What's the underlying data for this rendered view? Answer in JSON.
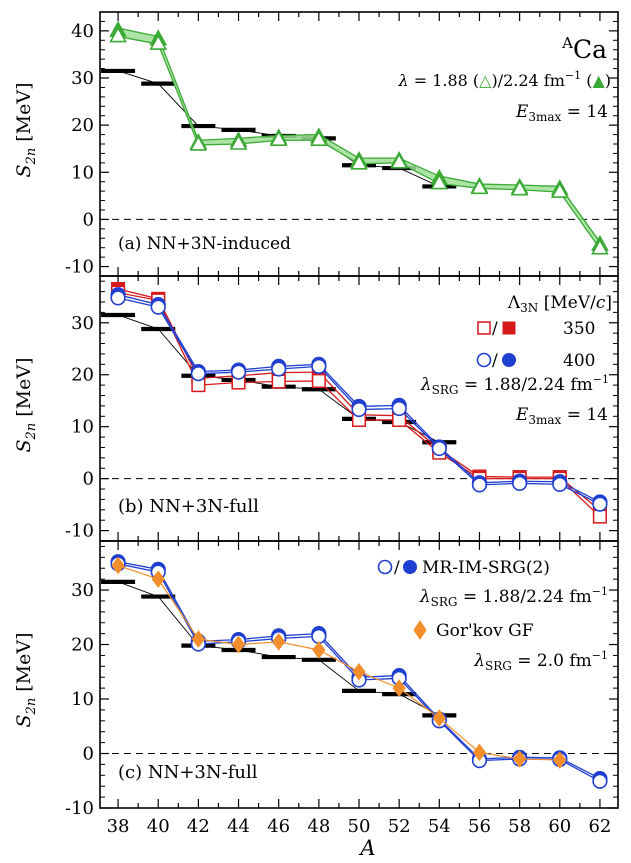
{
  "chart_data": {
    "type": "scatter",
    "x_axis": {
      "label": "A",
      "ticks": [
        38,
        40,
        42,
        44,
        46,
        48,
        50,
        52,
        54,
        56,
        58,
        60,
        62
      ],
      "range": [
        37.1,
        62.9
      ]
    },
    "experiment": {
      "A": [
        38,
        40,
        42,
        44,
        46,
        48,
        50,
        52,
        54
      ],
      "S2n": [
        31.5,
        28.8,
        19.8,
        19.0,
        17.7,
        17.2,
        11.5,
        10.9,
        7.0
      ],
      "color": "#000000"
    },
    "panels": [
      {
        "id": "a",
        "label": "(a) NN+3N-induced",
        "ylabel": "S_2n [MeV]",
        "ylim": [
          -12,
          44
        ],
        "yticks": [
          -10,
          0,
          10,
          20,
          30,
          40
        ],
        "ytick_labels": [
          "-10",
          "0",
          "10",
          "20",
          "30",
          "40"
        ],
        "annotations": {
          "nucleus": "ACa",
          "lambda": "λ = 1.88 (△)/2.24 fm⁻¹ (▲)",
          "e3max": "E3max = 14"
        },
        "series": [
          {
            "marker": "triangle",
            "color": "#3aaa35",
            "band_color": "#9fdf95",
            "A": [
              38,
              40,
              42,
              44,
              46,
              48,
              50,
              52,
              54,
              56,
              58,
              60,
              62
            ],
            "low": [
              38.8,
              37.2,
              15.8,
              16.0,
              16.8,
              16.8,
              11.8,
              12.0,
              7.6,
              6.6,
              6.3,
              5.8,
              -6.2
            ],
            "high": [
              40.6,
              38.8,
              16.8,
              17.2,
              17.8,
              18.0,
              13.0,
              13.0,
              9.2,
              7.5,
              7.3,
              7.0,
              -4.8
            ]
          }
        ]
      },
      {
        "id": "b",
        "label": "(b) NN+3N-full",
        "ylabel": "S_2n [MeV]",
        "ylim": [
          -12,
          39
        ],
        "yticks": [
          -10,
          0,
          10,
          20,
          30
        ],
        "ytick_labels": [
          "-10",
          "0",
          "10",
          "20",
          "30"
        ],
        "annotations": {
          "legend_title": "Λ3N [MeV/c]",
          "legend_350": "350",
          "legend_400": "400",
          "lambda": "λSRG = 1.88/2.24 fm⁻¹",
          "e3max": "E3max = 14"
        },
        "series": [
          {
            "name": "350",
            "marker": "square",
            "color": "#d7191c",
            "A": [
              38,
              40,
              42,
              44,
              46,
              48,
              50,
              52,
              54,
              56,
              58,
              60,
              62
            ],
            "open": [
              35.8,
              34.3,
              18.0,
              18.5,
              18.7,
              18.8,
              11.3,
              11.3,
              5.0,
              0.0,
              0.0,
              0.0,
              -7.3
            ],
            "filled": [
              36.5,
              34.6,
              19.3,
              19.8,
              20.4,
              20.5,
              12.3,
              12.1,
              5.6,
              0.4,
              0.3,
              0.3,
              -6.1
            ]
          },
          {
            "name": "400",
            "marker": "circle",
            "color": "#1f3fd0",
            "A": [
              38,
              40,
              42,
              44,
              46,
              48,
              50,
              52,
              54,
              56,
              58,
              60,
              62
            ],
            "open": [
              34.8,
              33.0,
              20.2,
              20.5,
              21.1,
              21.6,
              13.3,
              13.5,
              5.8,
              -1.2,
              -0.9,
              -1.1,
              -4.9
            ],
            "filled": [
              35.4,
              33.5,
              20.6,
              20.9,
              21.6,
              22.0,
              13.9,
              14.1,
              6.1,
              -0.8,
              -0.5,
              -0.6,
              -4.5
            ]
          }
        ]
      },
      {
        "id": "c",
        "label": "(c) NN+3N-full",
        "ylabel": "S_2n [MeV]",
        "ylim": [
          -10,
          39
        ],
        "yticks": [
          -10,
          0,
          10,
          20,
          30
        ],
        "ytick_labels": [
          "-10",
          "0",
          "10",
          "20",
          "30"
        ],
        "annotations": {
          "legend_mr": "MR-IM-SRG(2)",
          "lambda_mr": "λSRG = 1.88/2.24 fm⁻¹",
          "legend_gf": "Gor'kov GF",
          "lambda_gf": "λSRG = 2.0 fm⁻¹"
        },
        "series": [
          {
            "name": "MR-IM-SRG(2)",
            "marker": "circle",
            "color": "#1f3fd0",
            "A": [
              38,
              40,
              42,
              44,
              46,
              48,
              50,
              52,
              54,
              56,
              58,
              60,
              62
            ],
            "open": [
              34.8,
              33.3,
              20.1,
              20.5,
              21.1,
              21.5,
              13.5,
              13.8,
              6.0,
              -1.3,
              -1.0,
              -1.1,
              -5.1
            ],
            "filled": [
              35.2,
              33.8,
              20.6,
              20.9,
              21.6,
              22.0,
              14.0,
              14.3,
              6.3,
              -1.0,
              -0.7,
              -0.8,
              -4.6
            ]
          },
          {
            "name": "Gor'kov GF",
            "marker": "diamond",
            "color": "#f28e2b",
            "A": [
              38,
              40,
              42,
              44,
              46,
              48,
              50,
              52,
              54,
              56,
              58,
              60
            ],
            "values": [
              34.5,
              32.0,
              21.0,
              20.0,
              20.5,
              19.0,
              15.0,
              12.0,
              6.5,
              0.2,
              -1.0,
              -1.2
            ]
          }
        ]
      }
    ]
  }
}
